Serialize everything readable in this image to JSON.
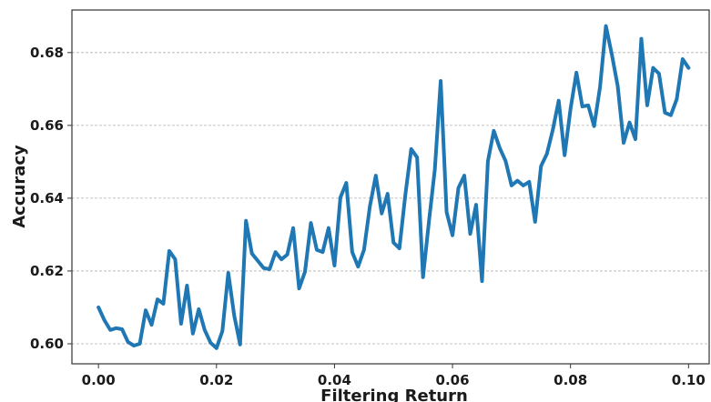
{
  "chart_data": {
    "type": "line",
    "title": "",
    "xlabel": "Filtering Return",
    "ylabel": "Accuracy",
    "xlim": [
      -0.0045,
      0.1035
    ],
    "ylim": [
      0.5945,
      0.6917
    ],
    "xticks": [
      0.0,
      0.02,
      0.04,
      0.06,
      0.08,
      0.1
    ],
    "xtick_labels": [
      "0.00",
      "0.02",
      "0.04",
      "0.06",
      "0.08",
      "0.10"
    ],
    "yticks": [
      0.6,
      0.62,
      0.64,
      0.66,
      0.68
    ],
    "ytick_labels": [
      "0.60",
      "0.62",
      "0.64",
      "0.66",
      "0.68"
    ],
    "grid": "horizontal-dashed",
    "line_color": "#1f77b4",
    "series": [
      {
        "x": [
          0.0,
          0.001,
          0.002,
          0.003,
          0.004,
          0.005,
          0.006,
          0.007,
          0.008,
          0.009,
          0.01,
          0.011,
          0.012,
          0.013,
          0.014,
          0.015,
          0.016,
          0.017,
          0.018,
          0.019,
          0.02,
          0.021,
          0.022,
          0.023,
          0.024,
          0.025,
          0.026,
          0.027,
          0.028,
          0.029,
          0.03,
          0.031,
          0.032,
          0.033,
          0.034,
          0.035,
          0.036,
          0.037,
          0.038,
          0.039,
          0.04,
          0.041,
          0.042,
          0.043,
          0.044,
          0.045,
          0.046,
          0.047,
          0.048,
          0.049,
          0.05,
          0.051,
          0.052,
          0.053,
          0.054,
          0.055,
          0.056,
          0.057,
          0.058,
          0.059,
          0.06,
          0.061,
          0.062,
          0.063,
          0.064,
          0.065,
          0.066,
          0.067,
          0.068,
          0.069,
          0.07,
          0.071,
          0.072,
          0.073,
          0.074,
          0.075,
          0.076,
          0.077,
          0.078,
          0.079,
          0.08,
          0.081,
          0.082,
          0.083,
          0.084,
          0.085,
          0.086,
          0.087,
          0.088,
          0.089,
          0.09,
          0.091,
          0.092,
          0.093,
          0.094,
          0.095,
          0.096,
          0.097,
          0.098,
          0.099,
          0.1
        ],
        "values": [
          0.61,
          0.6065,
          0.6038,
          0.6043,
          0.604,
          0.6005,
          0.5995,
          0.6,
          0.6092,
          0.6052,
          0.6122,
          0.611,
          0.6255,
          0.6232,
          0.6055,
          0.616,
          0.6028,
          0.6095,
          0.6038,
          0.6003,
          0.5988,
          0.6035,
          0.6195,
          0.6078,
          0.5998,
          0.6338,
          0.6248,
          0.6228,
          0.6208,
          0.6205,
          0.6252,
          0.6232,
          0.6245,
          0.6318,
          0.6152,
          0.6198,
          0.6332,
          0.6258,
          0.6252,
          0.6318,
          0.6215,
          0.6402,
          0.6442,
          0.6252,
          0.6212,
          0.6258,
          0.6378,
          0.6462,
          0.6358,
          0.6412,
          0.6278,
          0.6262,
          0.6408,
          0.6535,
          0.6512,
          0.6183,
          0.6335,
          0.6478,
          0.6722,
          0.6362,
          0.6298,
          0.6428,
          0.6462,
          0.6302,
          0.6382,
          0.6172,
          0.6502,
          0.6585,
          0.6538,
          0.6502,
          0.6435,
          0.6448,
          0.6435,
          0.6445,
          0.6335,
          0.6488,
          0.6522,
          0.6588,
          0.6668,
          0.6518,
          0.6645,
          0.6745,
          0.6652,
          0.6655,
          0.6598,
          0.6705,
          0.6873,
          0.6795,
          0.6708,
          0.6552,
          0.6608,
          0.6562,
          0.6838,
          0.6655,
          0.6758,
          0.6742,
          0.6635,
          0.6628,
          0.6672,
          0.6782,
          0.6758
        ]
      }
    ]
  }
}
